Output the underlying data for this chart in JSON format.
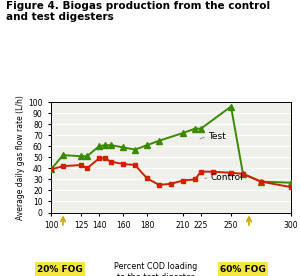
{
  "title_line1": "Figure 4. Biogas production from the control",
  "title_line2": "and test digesters",
  "ylabel": "Average daily gas flow rate (L/h)",
  "xlim": [
    100,
    300
  ],
  "ylim": [
    0,
    100
  ],
  "yticks": [
    0,
    10,
    20,
    30,
    40,
    50,
    60,
    70,
    80,
    90,
    100
  ],
  "xtick_positions": [
    100,
    125,
    140,
    160,
    180,
    210,
    225,
    250,
    300
  ],
  "xtick_labels": [
    "100",
    "125",
    "140",
    "160",
    "180",
    "210",
    "225",
    "250",
    "300"
  ],
  "test_x": [
    100,
    110,
    125,
    130,
    140,
    145,
    150,
    160,
    170,
    180,
    190,
    210,
    220,
    225,
    250,
    260,
    275,
    300
  ],
  "test_y": [
    39,
    52,
    51,
    51,
    60,
    61,
    61,
    59,
    57,
    61,
    65,
    72,
    76,
    76,
    96,
    35,
    28,
    27
  ],
  "control_x": [
    100,
    110,
    125,
    130,
    140,
    145,
    150,
    160,
    170,
    180,
    190,
    200,
    210,
    220,
    225,
    235,
    250,
    260,
    275,
    300
  ],
  "control_y": [
    39,
    42,
    43,
    40,
    49,
    49,
    46,
    44,
    43,
    31,
    25,
    26,
    29,
    30,
    37,
    37,
    36,
    35,
    28,
    23
  ],
  "test_color": "#3a8a00",
  "control_color": "#cc2200",
  "test_label": "Test",
  "control_label": "Control",
  "fog20_x": 110,
  "fog60_x": 265,
  "fog20_label": "20% FOG",
  "fog60_label": "60% FOG",
  "fog_color": "#f5e642",
  "arrow_color": "#c8a800",
  "background_color": "#ffffff",
  "plot_bg": "#f0f0eb"
}
